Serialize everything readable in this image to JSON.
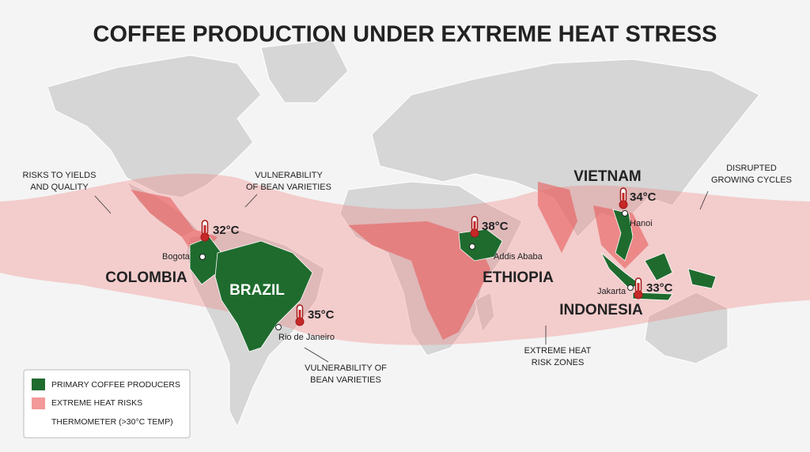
{
  "title": "COFFEE PRODUCTION UNDER EXTREME HEAT STRESS",
  "annotations": [
    {
      "lines": [
        "RISKS TO YIELDS",
        "AND QUALITY"
      ]
    },
    {
      "lines": [
        "VULNERABILITY",
        "OF BEAN VARIETIES"
      ]
    },
    {
      "lines": [
        "DISRUPTED",
        "GROWING CYCLES"
      ]
    },
    {
      "lines": [
        "VULNERABILITY OF",
        "BEAN VARIETIES"
      ]
    },
    {
      "lines": [
        "EXTREME HEAT",
        "RISK ZONES"
      ]
    }
  ],
  "countries": [
    "COLOMBIA",
    "BRAZIL",
    "ETHIOPIA",
    "VIETNAM",
    "INDONESIA"
  ],
  "cities": [
    "Bogota",
    "Rio de Janeiro",
    "Addis Ababa",
    "Hanoi",
    "Jakarta"
  ],
  "temperatures": [
    "32°C",
    "35°C",
    "38°C",
    "34°C",
    "33°C"
  ],
  "legend": [
    "PRIMARY COFFEE PRODUCERS",
    "EXTREME HEAT RISKS",
    "THERMOMETER (>30°C TEMP)"
  ]
}
